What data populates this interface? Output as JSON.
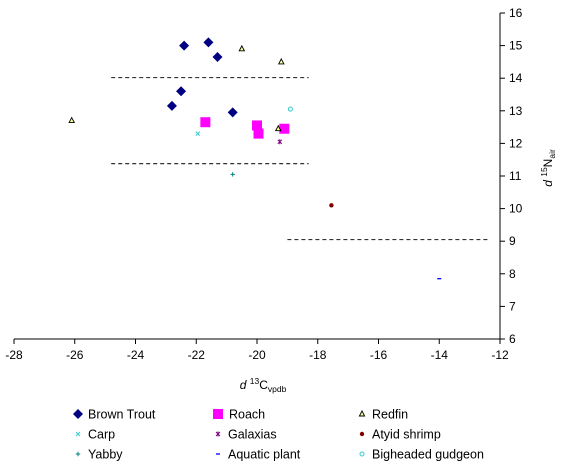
{
  "chart_data": {
    "type": "scatter",
    "xlabel": {
      "prefix": "d",
      "sup": "13",
      "main": "C",
      "sub": "vpdb"
    },
    "ylabel": {
      "prefix": "d",
      "sup": "15",
      "main": "N",
      "sub": "air"
    },
    "xlim": [
      -28,
      -12
    ],
    "ylim": [
      6,
      16
    ],
    "xticks": [
      "-28",
      "-26",
      "-24",
      "-22",
      "-20",
      "-18",
      "-16",
      "-14",
      "-12"
    ],
    "yticks": [
      "6",
      "7",
      "8",
      "9",
      "10",
      "11",
      "12",
      "13",
      "14",
      "15",
      "16"
    ],
    "grid": false,
    "legend_position": "bottom",
    "series": [
      {
        "name": "Brown Trout",
        "marker": "diamond",
        "color": "#000080",
        "points": [
          [
            -22.4,
            15.0
          ],
          [
            -21.6,
            15.1
          ],
          [
            -21.3,
            14.65
          ],
          [
            -22.5,
            13.6
          ],
          [
            -22.8,
            13.15
          ],
          [
            -20.8,
            12.95
          ]
        ]
      },
      {
        "name": "Roach",
        "marker": "square",
        "color": "#ff00ff",
        "points": [
          [
            -21.7,
            12.65
          ],
          [
            -20.0,
            12.55
          ],
          [
            -19.95,
            12.3
          ],
          [
            -19.1,
            12.45
          ]
        ]
      },
      {
        "name": "Redfin",
        "marker": "triangle",
        "color": "#000000",
        "points": [
          [
            -26.1,
            12.7
          ],
          [
            -20.5,
            14.9
          ],
          [
            -19.2,
            14.5
          ],
          [
            -19.3,
            12.45
          ]
        ]
      },
      {
        "name": "Carp",
        "marker": "cross",
        "color": "#33cccc",
        "points": [
          [
            -21.95,
            12.3
          ]
        ]
      },
      {
        "name": "Galaxias",
        "marker": "star",
        "color": "#800080",
        "points": [
          [
            -19.25,
            12.05
          ]
        ]
      },
      {
        "name": "Atyid shrimp",
        "marker": "circle",
        "color": "#800000",
        "points": [
          [
            -17.55,
            10.1
          ]
        ]
      },
      {
        "name": "Yabby",
        "marker": "plus",
        "color": "#008080",
        "points": [
          [
            -20.8,
            11.05
          ]
        ]
      },
      {
        "name": "Aquatic plant",
        "marker": "dash",
        "color": "#0000ff",
        "points": [
          [
            -14.0,
            7.85
          ]
        ]
      },
      {
        "name": "Bigheaded gudgeon",
        "marker": "hollow-circle",
        "color": "#33cccc",
        "points": [
          [
            -18.9,
            13.05
          ]
        ]
      }
    ],
    "reference_lines": [
      {
        "x0": -24.8,
        "x1": -18.3,
        "y": 14.02
      },
      {
        "x0": -24.8,
        "x1": -18.3,
        "y": 11.38
      },
      {
        "x0": -19.0,
        "x1": -12.4,
        "y": 9.05
      }
    ]
  }
}
